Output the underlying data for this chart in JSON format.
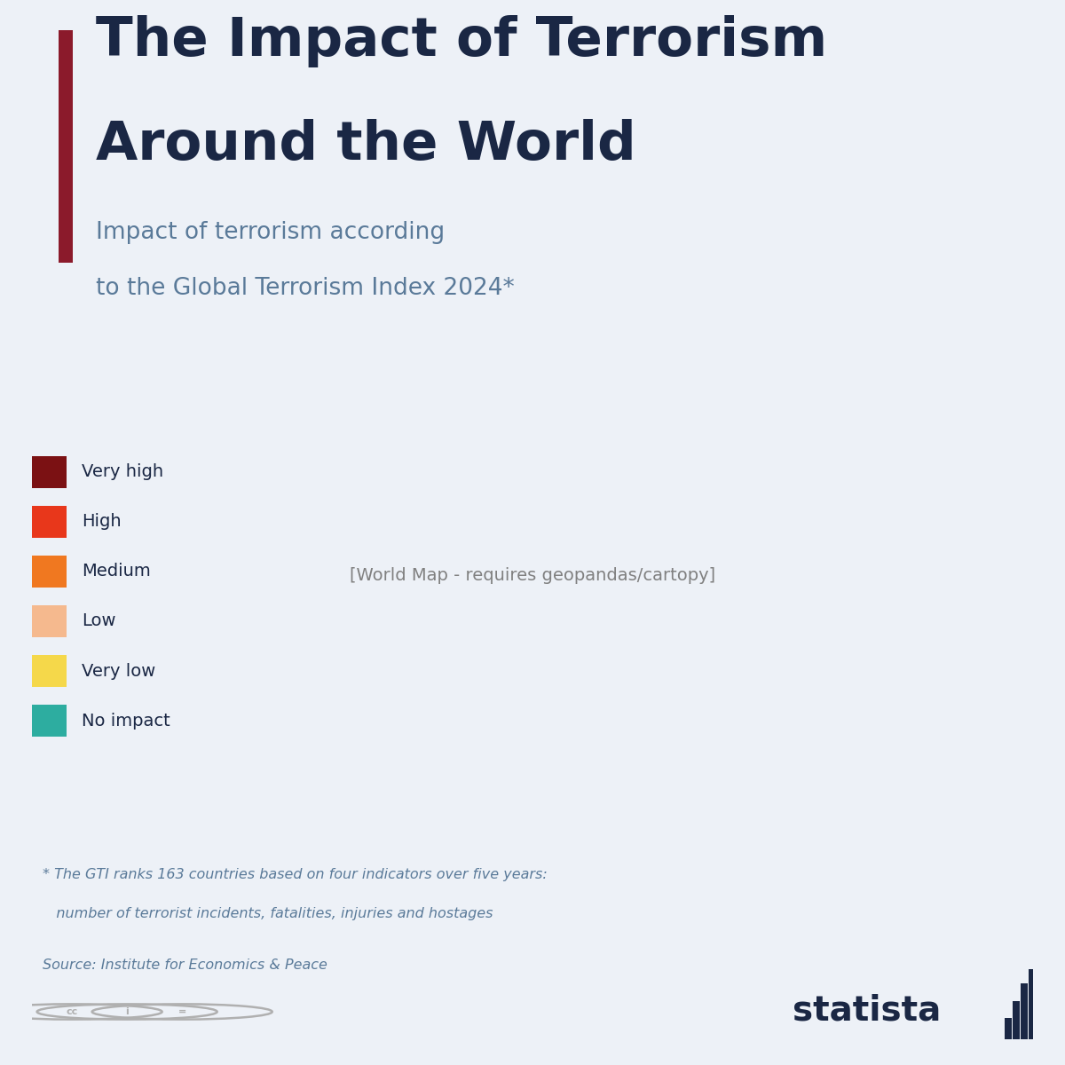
{
  "title_line1": "The Impact of Terrorism",
  "title_line2": "Around the World",
  "subtitle_line1": "Impact of terrorism according",
  "subtitle_line2": "to the Global Terrorism Index 2024*",
  "footnote_line1": "* The GTI ranks 163 countries based on four indicators over five years:",
  "footnote_line2": "   number of terrorist incidents, fatalities, injuries and hostages",
  "source": "Source: Institute for Economics & Peace",
  "background_color": "#edf1f7",
  "title_color": "#1a2744",
  "subtitle_color": "#5a7a99",
  "footnote_color": "#5a7a99",
  "accent_bar_color": "#8b1a2b",
  "legend_items": [
    {
      "label": "Very high",
      "color": "#7b1113"
    },
    {
      "label": "High",
      "color": "#e8371b"
    },
    {
      "label": "Medium",
      "color": "#f07820"
    },
    {
      "label": "Low",
      "color": "#f5b98e"
    },
    {
      "label": "Very low",
      "color": "#f5d84a"
    },
    {
      "label": "No impact",
      "color": "#2dada0"
    }
  ],
  "no_data_color": "#b8bcc4",
  "country_colors": {
    "Afghanistan": "#7b1113",
    "Iraq": "#7b1113",
    "Syria": "#7b1113",
    "Nigeria": "#7b1113",
    "Mali": "#7b1113",
    "Pakistan": "#7b1113",
    "Somalia": "#7b1113",
    "Yemen": "#7b1113",
    "Burkina Faso": "#7b1113",
    "Mozambique": "#7b1113",
    "Cameroon": "#7b1113",
    "Dem. Rep. Congo": "#7b1113",
    "Central African Rep.": "#7b1113",
    "Sudan": "#7b1113",
    "South Sudan": "#7b1113",
    "Ethiopia": "#7b1113",
    "Kenya": "#7b1113",
    "Myanmar": "#7b1113",
    "India": "#7b1113",
    "Philippines": "#7b1113",
    "Ukraine": "#7b1113",
    "Colombia": "#7b1113",
    "Israel": "#7b1113",
    "United States of America": "#e8371b",
    "Mexico": "#e8371b",
    "France": "#e8371b",
    "United Kingdom": "#e8371b",
    "Belgium": "#e8371b",
    "Germany": "#e8371b",
    "Spain": "#e8371b",
    "Italy": "#e8371b",
    "Greece": "#e8371b",
    "Turkey": "#e8371b",
    "Iran": "#e8371b",
    "Saudi Arabia": "#e8371b",
    "Jordan": "#e8371b",
    "Lebanon": "#e8371b",
    "Thailand": "#e8371b",
    "Indonesia": "#e8371b",
    "Bangladesh": "#e8371b",
    "Nepal": "#e8371b",
    "South Africa": "#e8371b",
    "Tanzania": "#e8371b",
    "Rwanda": "#e8371b",
    "Burundi": "#e8371b",
    "Senegal": "#e8371b",
    "Ivory Coast": "#e8371b",
    "Ghana": "#e8371b",
    "Brazil": "#e8371b",
    "Peru": "#e8371b",
    "Venezuela": "#e8371b",
    "Haiti": "#e8371b",
    "Egypt": "#e8371b",
    "Libya": "#e8371b",
    "Algeria": "#e8371b",
    "Congo": "#e8371b",
    "Niger": "#e8371b",
    "Chad": "#e8371b",
    "Guinea": "#e8371b",
    "Angola": "#e8371b",
    "Zimbabwe": "#e8371b",
    "Zambia": "#e8371b",
    "Russia": "#e8371b",
    "Sri Lanka": "#e8371b",
    "Malawi": "#e8371b",
    "Uganda": "#7b1113",
    "Togo": "#e8371b",
    "Benin": "#e8371b",
    "Guinea-Bissau": "#e8371b",
    "Eritrea": "#e8371b",
    "Canada": "#f07820",
    "Argentina": "#f07820",
    "Chile": "#f07820",
    "Uruguay": "#f07820",
    "Australia": "#f07820",
    "Japan": "#f07820",
    "South Korea": "#f07820",
    "China": "#f07820",
    "Kazakhstan": "#f07820",
    "Poland": "#f07820",
    "Sweden": "#f07820",
    "Norway": "#f07820",
    "Denmark": "#f07820",
    "Finland": "#f07820",
    "Netherlands": "#f07820",
    "Portugal": "#f07820",
    "Austria": "#f07820",
    "Switzerland": "#f07820",
    "Romania": "#f07820",
    "Bulgaria": "#f07820",
    "Hungary": "#f07820",
    "Morocco": "#f07820",
    "Mauritania": "#f07820",
    "Serbia": "#f07820",
    "New Zealand": "#f07820",
    "Malaysia": "#f07820",
    "Vietnam": "#f07820",
    "Cuba": "#f07820",
    "Guatemala": "#f07820",
    "Honduras": "#f07820",
    "Bolivia": "#f07820",
    "Ecuador": "#f07820",
    "Paraguay": "#f07820",
    "Namibia": "#f07820",
    "Botswana": "#f07820",
    "Czech Rep.": "#f07820",
    "Slovakia": "#f07820",
    "Croatia": "#f07820",
    "Belarus": "#f07820",
    "Georgia": "#f07820",
    "Armenia": "#f07820",
    "Azerbaijan": "#f07820",
    "Uzbekistan": "#f07820",
    "Turkmenistan": "#f07820",
    "Kyrgyzstan": "#f07820",
    "Tajikistan": "#f07820",
    "Madagascar": "#f07820",
    "Gabon": "#f07820",
    "Eq. Guinea": "#f07820",
    "Cambodia": "#f07820",
    "Laos": "#f07820",
    "Papua New Guinea": "#f07820",
    "El Salvador": "#e8371b",
    "Nicaragua": "#e8371b",
    "Ireland": "#f5b98e",
    "Iceland": "#f5b98e",
    "Luxembourg": "#f5b98e",
    "Estonia": "#f5b98e",
    "Latvia": "#f5b98e",
    "Lithuania": "#f5b98e",
    "North Macedonia": "#f5b98e",
    "Bosnia and Herz.": "#f5b98e",
    "Montenegro": "#f5b98e",
    "Albania": "#f5b98e",
    "Oman": "#f5b98e",
    "Qatar": "#f5b98e",
    "Kuwait": "#f5b98e",
    "Bahrain": "#f5b98e",
    "Singapore": "#f5b98e",
    "Brunei": "#f5b98e",
    "United Arab Emirates": "#f5b98e",
    "Slovenia": "#f5b98e",
    "Greenland": "#f5d84a",
    "Suriname": "#f5d84a",
    "Guyana": "#f5d84a",
    "Belize": "#f5d84a",
    "Timor-Leste": "#f5d84a",
    "Mongolia": "#f5d84a",
    "Costa Rica": "#2dada0",
    "Trinidad and Tobago": "#2dada0",
    "Bhutan": "#2dada0",
    "Panama": "#2dada0",
    "Dom. Rep.": "#2dada0",
    "Jamaica": "#2dada0"
  }
}
